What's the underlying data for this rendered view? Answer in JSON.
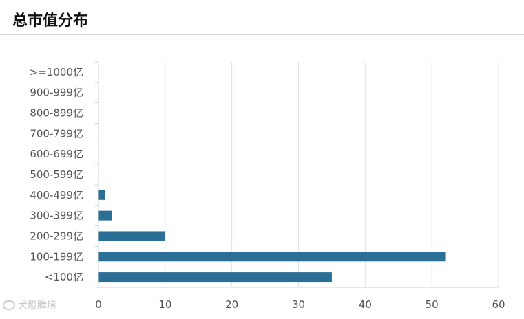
{
  "header": {
    "title": "总市值分布"
  },
  "watermark": {
    "text": "犬股腾境"
  },
  "colors": {
    "bar": "#2b6f96",
    "grid": "#dde3ea",
    "axis": "#c9d3dc"
  },
  "chart_data": {
    "type": "bar",
    "orientation": "horizontal",
    "categories": [
      ">=1000亿",
      "900-999亿",
      "800-899亿",
      "700-799亿",
      "600-699亿",
      "500-599亿",
      "400-499亿",
      "300-399亿",
      "200-299亿",
      "100-199亿",
      "<100亿"
    ],
    "values": [
      0,
      0,
      0,
      0,
      0,
      0,
      1,
      2,
      10,
      52,
      35
    ],
    "xlim": [
      0,
      60
    ],
    "xticks": [
      0,
      10,
      20,
      30,
      40,
      50,
      60
    ],
    "grid": true,
    "legend": "none"
  }
}
